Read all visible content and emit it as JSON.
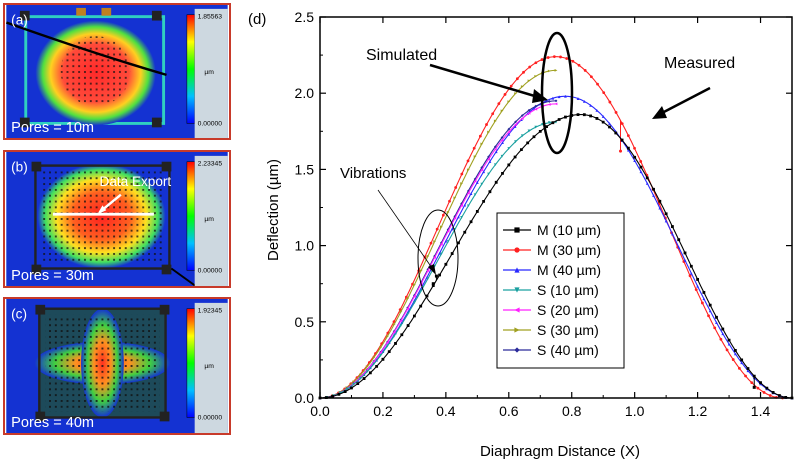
{
  "panels": {
    "a": {
      "label": "(a)",
      "caption": "Pores = 10m",
      "scale_max": "1.85563",
      "scale_unit": "µm",
      "scale_min": "0.00000"
    },
    "b": {
      "label": "(b)",
      "caption": "Pores = 30m",
      "scale_max": "2.23345",
      "scale_unit": "µm",
      "scale_min": "0.00000",
      "annotation": "Data Export"
    },
    "c": {
      "label": "(c)",
      "caption": "Pores = 40m",
      "scale_max": "1.92345",
      "scale_unit": "µm",
      "scale_min": "0.00000"
    }
  },
  "colors": {
    "panel_border": "#c83a2a",
    "heatmap_bg": "#1432d2",
    "M10": "#000000",
    "M30": "#ff2020",
    "M40": "#2828ff",
    "S10": "#1aa0a0",
    "S20": "#ff20ff",
    "S30": "#a0a020",
    "S40": "#2a2a9a"
  },
  "chart_data": {
    "type": "scatter",
    "panel_label": "(d)",
    "xlabel": "Diaphragm Distance (X)",
    "ylabel": "Deflection (µm)",
    "xlim": [
      0.0,
      1.5
    ],
    "ylim": [
      0.0,
      2.5
    ],
    "xticks": [
      "0.0",
      "0.2",
      "0.4",
      "0.6",
      "0.8",
      "1.0",
      "1.2",
      "1.4"
    ],
    "yticks": [
      "0.0",
      "0.5",
      "1.0",
      "1.5",
      "2.0",
      "2.5"
    ],
    "annotations": {
      "simulated": "Simulated",
      "measured": "Measured",
      "vibrations": "Vibrations"
    },
    "legend_position": "bottom-center",
    "series": [
      {
        "key": "M10",
        "name": "M (10 µm)",
        "marker": "square",
        "kind": "measured",
        "x_start": 0.0,
        "x_end": 1.5,
        "peak_x": 0.83,
        "peak_y": 1.86,
        "spikes": [
          {
            "x": 0.36,
            "y_low": 0.75
          },
          {
            "x": 0.37,
            "y_low": 0.8
          },
          {
            "x": 1.38,
            "y_low": 0.07
          }
        ]
      },
      {
        "key": "M30",
        "name": "M (30 µm)",
        "marker": "circle",
        "kind": "measured",
        "x_start": 0.0,
        "x_end": 1.47,
        "peak_x": 0.75,
        "peak_y": 2.24,
        "spikes": [
          {
            "x": 0.955,
            "y_low": 1.62
          }
        ]
      },
      {
        "key": "M40",
        "name": "M (40 µm)",
        "marker": "triangle-up",
        "kind": "measured",
        "x_start": 0.0,
        "x_end": 1.5,
        "peak_x": 0.78,
        "peak_y": 1.98,
        "spikes": []
      },
      {
        "key": "S10",
        "name": "S (10 µm)",
        "marker": "triangle-down",
        "kind": "simulated",
        "x_start": 0.0,
        "x_end": 0.75,
        "peak_x": 0.75,
        "peak_y": 1.81,
        "spikes": []
      },
      {
        "key": "S20",
        "name": "S (20 µm)",
        "marker": "triangle-left",
        "kind": "simulated",
        "x_start": 0.0,
        "x_end": 0.75,
        "peak_x": 0.75,
        "peak_y": 1.93,
        "spikes": []
      },
      {
        "key": "S30",
        "name": "S (30 µm)",
        "marker": "triangle-right",
        "kind": "simulated",
        "x_start": 0.0,
        "x_end": 0.75,
        "peak_x": 0.75,
        "peak_y": 2.15,
        "spikes": []
      },
      {
        "key": "S40",
        "name": "S (40 µm)",
        "marker": "diamond",
        "kind": "simulated",
        "x_start": 0.0,
        "x_end": 0.75,
        "peak_x": 0.75,
        "peak_y": 1.95,
        "spikes": []
      }
    ]
  }
}
